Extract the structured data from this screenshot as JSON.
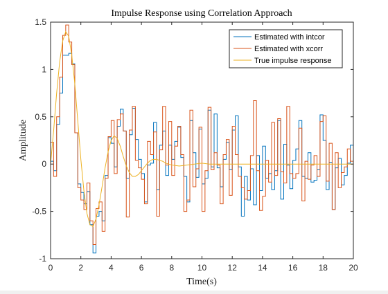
{
  "chart_data": {
    "type": "line",
    "title": "Impulse Response using Correlation Approach",
    "xlabel": "Time(s)",
    "ylabel": "Amplitude",
    "xlim": [
      0,
      20
    ],
    "ylim": [
      -1,
      1.5
    ],
    "xticks": [
      0,
      2,
      4,
      6,
      8,
      10,
      12,
      14,
      16,
      18,
      20
    ],
    "yticks": [
      -1,
      -0.5,
      0,
      0.5,
      1,
      1.5
    ],
    "xtick_labels": [
      "0",
      "2",
      "4",
      "6",
      "8",
      "10",
      "12",
      "14",
      "16",
      "18",
      "20"
    ],
    "ytick_labels": [
      "-1",
      "-0.5",
      "0",
      "0.5",
      "1",
      "1.5"
    ],
    "grid": false,
    "legend_position": "top-right",
    "series": [
      {
        "name": "Estimated with intcor",
        "style": "stairs",
        "color": "#0072BD",
        "x_start": 0,
        "x_step": 0.2,
        "values": [
          0.03,
          -0.07,
          0.42,
          0.75,
          1.15,
          1.15,
          1.17,
          1.06,
          0.33,
          -0.21,
          -0.3,
          -0.42,
          -0.29,
          -0.64,
          -0.94,
          -0.55,
          -0.5,
          -0.6,
          -0.12,
          0.28,
          0.22,
          -0.03,
          0.4,
          0.58,
          0.35,
          -0.15,
          0.31,
          0.59,
          0.26,
          0.05,
          -0.1,
          -0.4,
          -0.01,
          0.01,
          0.44,
          -0.27,
          0.2,
          0.35,
          -0.12,
          0.2,
          0.05,
          0.24,
          0.39,
          0.07,
          -0.13,
          -0.4,
          0.46,
          0.12,
          -0.14,
          0.37,
          -0.21,
          -0.15,
          0.57,
          -0.03,
          0.53,
          -0.04,
          -0.24,
          0.05,
          0.23,
          -0.06,
          0.36,
          0.51,
          -0.03,
          -0.55,
          -0.13,
          -0.38,
          -0.05,
          -0.43,
          0.09,
          -0.28,
          0.19,
          -0.15,
          -0.1,
          -0.27,
          -0.07,
          0.46,
          -0.37,
          0.21,
          -0.01,
          -0.26,
          0.04,
          0.16,
          0.46,
          -0.13,
          -0.15,
          0.12,
          -0.19,
          -0.17,
          -0.06,
          0.52,
          0.25,
          -0.27,
          0.02,
          -0.48,
          -0.04,
          0.06,
          -0.22,
          -0.12,
          0.01,
          0.2
        ]
      },
      {
        "name": "Estimated with xcorr",
        "style": "stairs",
        "color": "#D95319",
        "x_start": 0,
        "x_step": 0.2,
        "values": [
          0.23,
          -0.13,
          0.5,
          0.92,
          1.36,
          1.47,
          1.29,
          1.05,
          0.33,
          -0.25,
          -0.38,
          -0.48,
          -0.2,
          -0.6,
          -0.85,
          -0.47,
          -0.4,
          -0.71,
          -0.15,
          0.29,
          0.46,
          -0.1,
          0.47,
          0.53,
          0.35,
          -0.56,
          0.36,
          0.61,
          0.04,
          -0.04,
          -0.16,
          -0.42,
          0.24,
          0.1,
          0.34,
          -0.55,
          0.15,
          0.61,
          -0.01,
          0.45,
          -0.12,
          0.19,
          0.4,
          0.1,
          -0.5,
          -0.38,
          0.57,
          -0.24,
          -0.05,
          0.39,
          -0.5,
          -0.07,
          0.6,
          -0.06,
          0.12,
          -0.01,
          -0.42,
          0.1,
          0.26,
          -0.33,
          0.4,
          0.1,
          -0.13,
          -0.25,
          -0.37,
          -0.28,
          0.09,
          0.67,
          -0.07,
          -0.49,
          -0.34,
          0.04,
          -0.19,
          0.44,
          -0.12,
          0.48,
          -0.08,
          -0.2,
          0.61,
          -0.1,
          -0.15,
          -0.1,
          0.38,
          -0.39,
          0.03,
          -0.16,
          -0.01,
          0.09,
          -0.13,
          0.45,
          0.51,
          -0.18,
          0.22,
          -0.48,
          0.12,
          -0.25,
          -0.09,
          -0.03,
          0.16,
          0.03
        ]
      },
      {
        "name": "True impulse response",
        "style": "line",
        "color": "#EDB120",
        "x": [
          0,
          0.2,
          0.4,
          0.6,
          0.8,
          1.0,
          1.2,
          1.4,
          1.6,
          1.8,
          2.0,
          2.2,
          2.4,
          2.6,
          2.8,
          3.0,
          3.2,
          3.4,
          3.6,
          3.8,
          4.0,
          4.2,
          4.4,
          4.6,
          4.8,
          5.0,
          5.2,
          5.4,
          5.6,
          5.8,
          6.0,
          6.2,
          6.4,
          6.6,
          6.8,
          7.0,
          7.2,
          7.4,
          7.6,
          7.8,
          8.0,
          8.5,
          9.0,
          9.5,
          10.0,
          10.5,
          11.0,
          11.5,
          12.0,
          13.0,
          14.0,
          15.0,
          16.0,
          17.0,
          18.0,
          19.0,
          20.0
        ],
        "y": [
          0,
          0.35,
          0.75,
          1.08,
          1.3,
          1.4,
          1.35,
          1.15,
          0.85,
          0.45,
          0.05,
          -0.28,
          -0.52,
          -0.64,
          -0.66,
          -0.58,
          -0.43,
          -0.24,
          -0.04,
          0.13,
          0.25,
          0.3,
          0.27,
          0.19,
          0.08,
          -0.02,
          -0.09,
          -0.13,
          -0.13,
          -0.11,
          -0.07,
          -0.03,
          0.01,
          0.04,
          0.05,
          0.05,
          0.04,
          0.03,
          0.01,
          0.0,
          -0.01,
          -0.02,
          -0.01,
          0.0,
          0.01,
          0.0,
          0.0,
          0.0,
          0.0,
          0.0,
          0.0,
          0.0,
          0.0,
          0.0,
          0.0,
          0.0,
          0.0
        ]
      }
    ]
  }
}
